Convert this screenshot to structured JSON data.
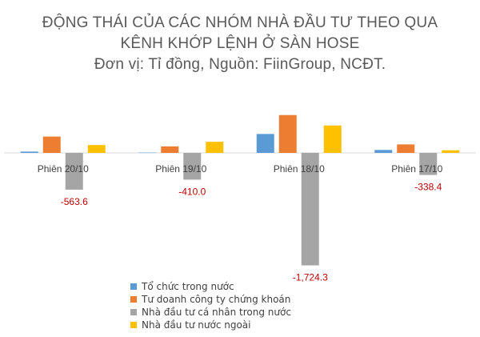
{
  "chart_data": {
    "type": "bar",
    "title_lines": [
      "ĐỘNG THÁI CỦA CÁC NHÓM NHÀ ĐẦU TƯ THEO  QUA",
      "KÊNH KHỚP LỆNH Ở SÀN HOSE",
      "Đơn vị: Tỉ đồng, Nguồn: FiinGroup, NCĐT."
    ],
    "categories": [
      "Phiên 20/10",
      "Phiên 19/10",
      "Phiên 18/10",
      "Phiên 17/10"
    ],
    "series": [
      {
        "name": "Tổ chức trong nước",
        "color": "#5B9BD5",
        "values": [
          20,
          5,
          290,
          45
        ]
      },
      {
        "name": "Tư doanh công ty chứng khoán",
        "color": "#ED7D31",
        "values": [
          250,
          100,
          580,
          130
        ]
      },
      {
        "name": "Nhà đầu tư cá nhân trong nước",
        "color": "#A5A5A5",
        "values": [
          -563.6,
          -410.0,
          -1724.3,
          -338.4
        ]
      },
      {
        "name": "Nhà đầu tư nước ngoài",
        "color": "#FFC000",
        "values": [
          120,
          170,
          420,
          40
        ]
      }
    ],
    "data_labels": [
      "-563.6",
      "-410.0",
      "-1,724.3",
      "-338.4"
    ],
    "data_label_color": "#C00000",
    "ylim": [
      -1724.3,
      580
    ],
    "grid": false,
    "legend_position": "bottom-left"
  }
}
